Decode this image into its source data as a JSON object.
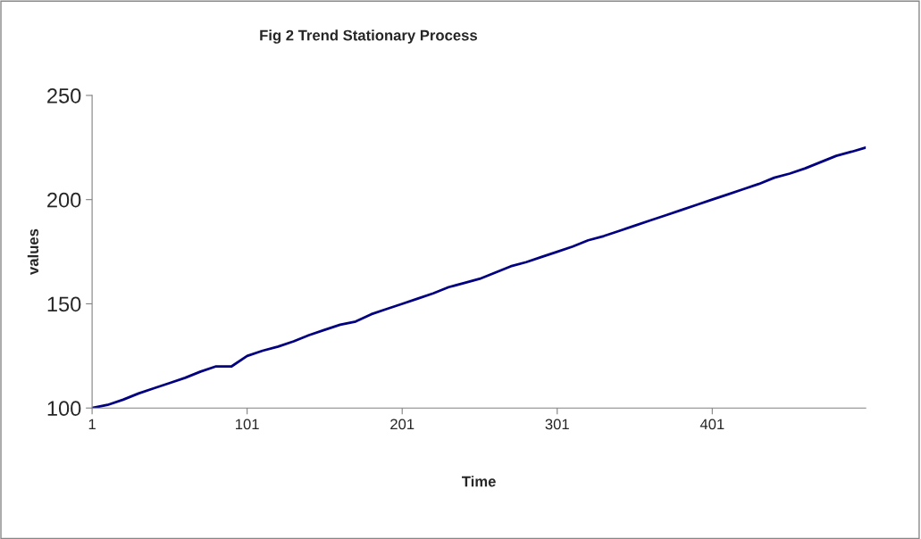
{
  "chart_data": {
    "type": "line",
    "title": "Fig 2 Trend Stationary Process",
    "xlabel": "Time",
    "ylabel": "values",
    "x": [
      1,
      11,
      21,
      31,
      41,
      51,
      61,
      71,
      81,
      91,
      101,
      111,
      121,
      131,
      141,
      151,
      161,
      171,
      181,
      191,
      201,
      211,
      221,
      231,
      241,
      251,
      261,
      271,
      281,
      291,
      301,
      311,
      321,
      331,
      341,
      351,
      361,
      371,
      381,
      391,
      401,
      411,
      421,
      431,
      441,
      451,
      461,
      471,
      481,
      491,
      500
    ],
    "series": [
      {
        "color": "#000080",
        "values": [
          100,
          101.5,
          104,
          107,
          109.5,
          112,
          114.5,
          117.5,
          120,
          120,
          125,
          127.5,
          129.5,
          132,
          135,
          137.5,
          140,
          141.5,
          145,
          147.5,
          150,
          152.5,
          155,
          158,
          160,
          162,
          165,
          168,
          170,
          172.5,
          175,
          177.5,
          180.5,
          182.5,
          185,
          187.5,
          190,
          192.5,
          195,
          197.5,
          200,
          202.5,
          205,
          207.5,
          210.5,
          212.5,
          215,
          218,
          221,
          223,
          225
        ]
      }
    ],
    "xlim": [
      1,
      500
    ],
    "xticks": [
      1,
      101,
      201,
      301,
      401
    ],
    "ylim": [
      100,
      250
    ],
    "yticks": [
      100,
      150,
      200,
      250
    ],
    "grid": false,
    "legend": false
  }
}
